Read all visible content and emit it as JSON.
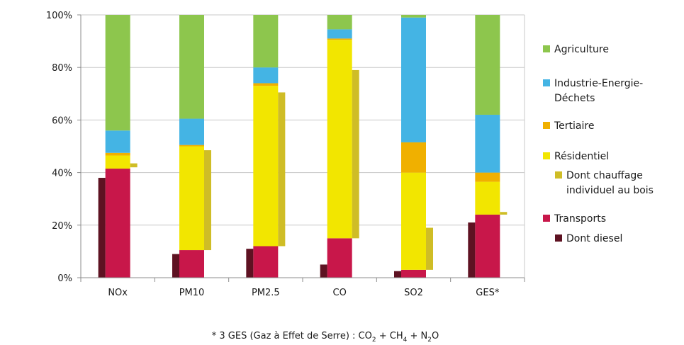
{
  "chart_data": {
    "type": "bar",
    "stacked": true,
    "percent": true,
    "categories": [
      "NOx",
      "PM10",
      "PM2.5",
      "CO",
      "SO2",
      "GES*"
    ],
    "yticks": [
      "0%",
      "20%",
      "40%",
      "60%",
      "80%",
      "100%"
    ],
    "ylim": [
      0,
      100
    ],
    "grid": true,
    "legend_position": "right",
    "series": [
      {
        "name": "Transports",
        "color": "#c8174a",
        "values": [
          41.5,
          10.5,
          12.0,
          15.0,
          3.0,
          24.0
        ]
      },
      {
        "name": "Résidentiel",
        "color": "#f2e600",
        "values": [
          5.0,
          39.5,
          61.0,
          75.5,
          37.0,
          12.5
        ]
      },
      {
        "name": "Tertiaire",
        "color": "#f0b000",
        "values": [
          1.0,
          0.5,
          1.0,
          0.5,
          11.5,
          3.5
        ]
      },
      {
        "name": "Industrie-Energie-Déchets",
        "color": "#44b4e4",
        "values": [
          8.5,
          10.0,
          6.0,
          3.5,
          47.5,
          22.0
        ]
      },
      {
        "name": "Agriculture",
        "color": "#8dc64d",
        "values": [
          44.0,
          39.5,
          20.0,
          5.5,
          1.0,
          38.0
        ]
      }
    ],
    "sub_series": [
      {
        "name": "Dont chauffage individuel au bois",
        "color": "#cfbd26",
        "of": "Résidentiel",
        "ranges": [
          [
            42.0,
            43.5
          ],
          [
            10.5,
            48.5
          ],
          [
            12.0,
            70.5
          ],
          [
            15.0,
            79.0
          ],
          [
            3.0,
            19.0
          ],
          [
            24.0,
            25.0
          ]
        ]
      },
      {
        "name": "Dont diesel",
        "color": "#5e1222",
        "of": "Transports",
        "values": [
          38.0,
          9.0,
          11.0,
          5.0,
          2.5,
          21.0
        ]
      }
    ],
    "legend": [
      {
        "label": "Agriculture",
        "color": "#8dc64d",
        "indent": false
      },
      {
        "label": "Industrie-Energie-",
        "label2": "Déchets",
        "color": "#44b4e4",
        "indent": false
      },
      {
        "label": "Tertiaire",
        "color": "#f0b000",
        "indent": false
      },
      {
        "label": "Résidentiel",
        "color": "#f2e600",
        "indent": false
      },
      {
        "label": "Dont chauffage",
        "label2": "individuel au bois",
        "color": "#cfbd26",
        "indent": true
      },
      {
        "label": "Transports",
        "color": "#c8174a",
        "indent": false
      },
      {
        "label": "Dont diesel",
        "color": "#5e1222",
        "indent": true
      }
    ],
    "footnote": {
      "prefix": "* 3 GES (Gaz à Effet de Serre) : CO",
      "s1": "2",
      "mid1": " + CH",
      "s2": "4",
      "mid2": " + N",
      "s3": "2",
      "suffix": "O"
    }
  }
}
